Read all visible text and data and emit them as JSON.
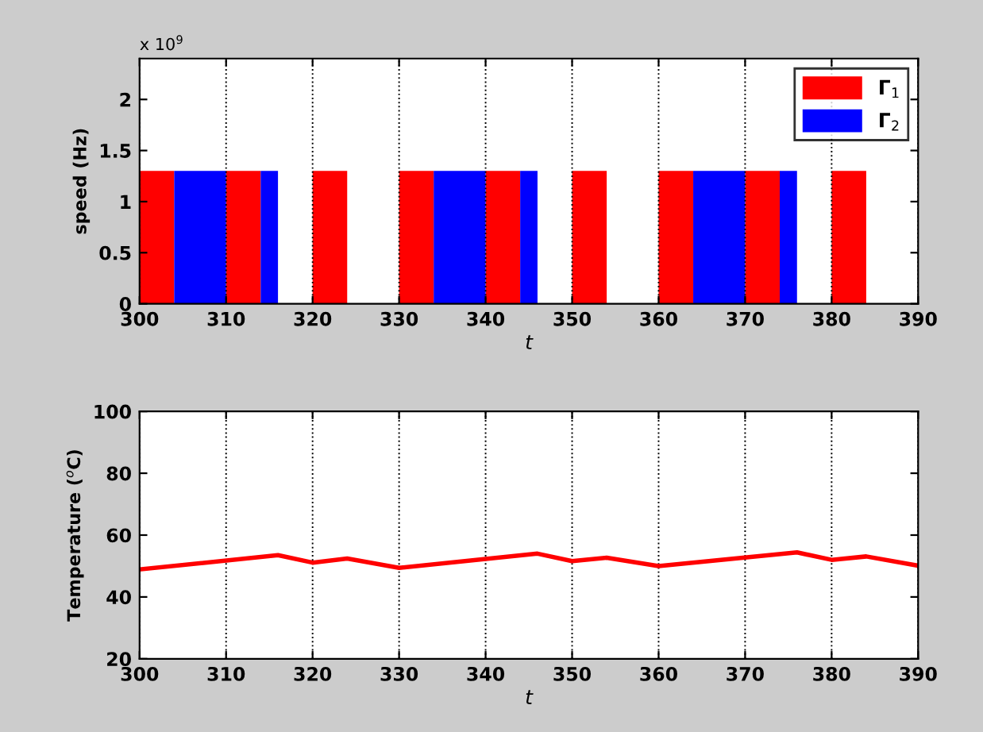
{
  "chart_data": [
    {
      "type": "area",
      "ylabel": "speed (Hz)",
      "xlabel": "t",
      "annotations": [
        "x 10$^{9}$"
      ],
      "xlim": [
        300,
        390
      ],
      "xticks": [
        300,
        310,
        320,
        330,
        340,
        350,
        360,
        370,
        380,
        390
      ],
      "ylim": [
        0,
        2.4
      ],
      "yticks": [
        0,
        0.5,
        1,
        1.5,
        2
      ],
      "grid": "x",
      "legend": "top right",
      "series": [
        {
          "name": "Γ$_{1}$",
          "color": "#ff0000",
          "x": [
            300,
            304,
            304,
            310,
            310,
            314,
            314,
            320,
            320,
            324,
            324,
            330,
            330,
            334,
            334,
            340,
            340,
            344,
            344,
            350,
            350,
            354,
            354,
            360,
            360,
            364,
            364,
            370,
            370,
            374,
            374,
            380,
            380,
            384
          ],
          "values": [
            1.3,
            1.3,
            0,
            0,
            1.3,
            1.3,
            0,
            0,
            1.3,
            1.3,
            0,
            0,
            1.3,
            1.3,
            0,
            0,
            1.3,
            1.3,
            0,
            0,
            1.3,
            1.3,
            0,
            0,
            1.3,
            1.3,
            0,
            0,
            1.3,
            1.3,
            0,
            0,
            1.3,
            1.3
          ]
        },
        {
          "name": "Γ$_{2}$",
          "color": "#0000ff",
          "x": [
            304,
            310,
            310,
            314,
            314,
            316,
            316,
            334,
            334,
            340,
            340,
            344,
            344,
            346,
            346,
            364,
            364,
            370,
            370,
            374,
            374,
            376
          ],
          "values": [
            1.3,
            1.3,
            0,
            0,
            1.3,
            1.3,
            0,
            0,
            1.3,
            1.3,
            0,
            0,
            1.3,
            1.3,
            0,
            0,
            1.3,
            1.3,
            0,
            0,
            1.3,
            1.3
          ]
        }
      ]
    },
    {
      "type": "line",
      "ylabel": "Temperature ($^{o}$C)",
      "xlabel": "t",
      "xlim": [
        300,
        390
      ],
      "xticks": [
        300,
        310,
        320,
        330,
        340,
        350,
        360,
        370,
        380,
        390
      ],
      "ylim": [
        20,
        100
      ],
      "yticks": [
        20,
        40,
        60,
        80,
        100
      ],
      "grid": "x",
      "series": [
        {
          "color": "#ff0000",
          "x": [
            300,
            316,
            320,
            324,
            330,
            346,
            350,
            354,
            360,
            376,
            380,
            384,
            390
          ],
          "values": [
            48.9,
            53.5,
            51.1,
            52.4,
            49.4,
            54.0,
            51.6,
            52.7,
            50.0,
            54.4,
            52.0,
            53.1,
            50.1
          ]
        }
      ]
    }
  ]
}
